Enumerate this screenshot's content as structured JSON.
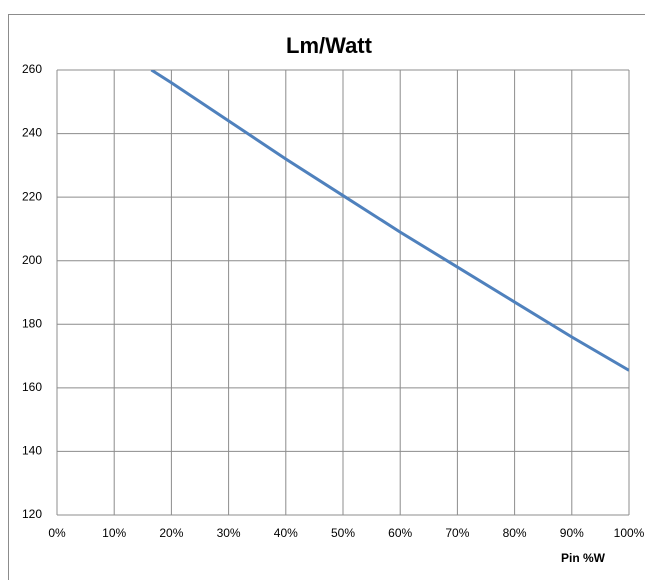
{
  "chart_data": {
    "type": "line",
    "title": "Lm/Watt",
    "x_label": "Pin %W",
    "x": [
      16.5,
      20,
      30,
      40,
      50,
      60,
      70,
      80,
      90,
      100
    ],
    "series": [
      {
        "name": "Lm/Watt",
        "color": "#4f81bd",
        "values": [
          260,
          256,
          244,
          232,
          220.5,
          209,
          198,
          187,
          176,
          165.5
        ]
      }
    ],
    "xlim": [
      0,
      100
    ],
    "xticks": [
      {
        "value": 0,
        "label": "0%"
      },
      {
        "value": 10,
        "label": "10%"
      },
      {
        "value": 20,
        "label": "20%"
      },
      {
        "value": 30,
        "label": "30%"
      },
      {
        "value": 40,
        "label": "40%"
      },
      {
        "value": 50,
        "label": "50%"
      },
      {
        "value": 60,
        "label": "60%"
      },
      {
        "value": 70,
        "label": "70%"
      },
      {
        "value": 80,
        "label": "80%"
      },
      {
        "value": 90,
        "label": "90%"
      },
      {
        "value": 100,
        "label": "100%"
      }
    ],
    "ylim": [
      120,
      260
    ],
    "yticks": [
      120,
      140,
      160,
      180,
      200,
      220,
      240,
      260
    ],
    "grid": true
  }
}
